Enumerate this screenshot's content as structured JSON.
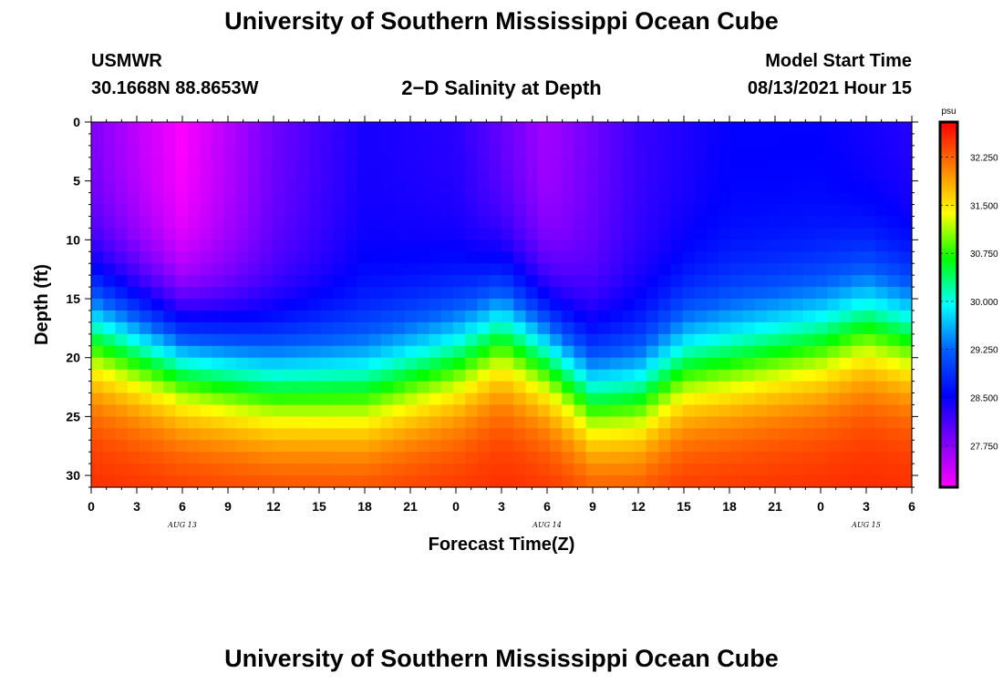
{
  "header": {
    "title_top": "University of Southern Mississippi Ocean Cube",
    "title_bottom": "University of Southern Mississippi Ocean Cube",
    "station_id": "USMWR",
    "station_coords": "30.1668N  88.8653W",
    "plot_title": "2−D Salinity at Depth",
    "model_start_label": "Model Start Time",
    "model_start_value": "08/13/2021 Hour 15"
  },
  "chart_data": {
    "type": "heatmap",
    "title": "2−D Salinity at Depth",
    "xlabel": "Forecast Time(Z)",
    "ylabel": "Depth (ft)",
    "x_ticks": [
      "0",
      "3",
      "6",
      "9",
      "12",
      "15",
      "18",
      "21",
      "0",
      "3",
      "6",
      "9",
      "12",
      "15",
      "18",
      "21",
      "0",
      "3",
      "6"
    ],
    "day_labels": [
      {
        "text": "AUG 13",
        "tick_index": 2
      },
      {
        "text": "AUG 14",
        "tick_index": 10
      },
      {
        "text": "AUG 15",
        "tick_index": 17
      }
    ],
    "y_ticks": [
      0,
      5,
      10,
      15,
      20,
      25,
      30
    ],
    "ylim": [
      0,
      31
    ],
    "xlim_hours": [
      0,
      54
    ],
    "colorbar": {
      "unit": "psu",
      "ticks": [
        "32.250",
        "31.500",
        "30.750",
        "30.000",
        "29.250",
        "28.500",
        "27.750"
      ],
      "range": [
        27.1,
        32.8
      ],
      "colors": [
        "#ff00ff",
        "#8000ff",
        "#0000ff",
        "#0060ff",
        "#00ffff",
        "#00ff00",
        "#ffff00",
        "#ff8000",
        "#ff0000"
      ]
    },
    "field_description": "Low-salinity (~27.1-28.3 psu) fresh layer near surface, strong halocline 12-22 ft, saline (~32.6 psu) bottom water; halocline rises near hour 24-30 and 48-54, deepens near hour 12-18 and 34-38.",
    "halocline_depth_ft": [
      {
        "hour": 0,
        "depth": 17.5
      },
      {
        "hour": 6,
        "depth": 20
      },
      {
        "hour": 12,
        "depth": 22
      },
      {
        "hour": 18,
        "depth": 22.5
      },
      {
        "hour": 24,
        "depth": 20
      },
      {
        "hour": 27,
        "depth": 17.5
      },
      {
        "hour": 30,
        "depth": 19.5
      },
      {
        "hour": 33,
        "depth": 23
      },
      {
        "hour": 36,
        "depth": 23
      },
      {
        "hour": 39,
        "depth": 20.5
      },
      {
        "hour": 42,
        "depth": 20
      },
      {
        "hour": 48,
        "depth": 18.5
      },
      {
        "hour": 51,
        "depth": 17
      },
      {
        "hour": 54,
        "depth": 18
      }
    ],
    "surface_salinity_psu": [
      {
        "hour": 0,
        "value": 27.8
      },
      {
        "hour": 6,
        "value": 27.1
      },
      {
        "hour": 12,
        "value": 27.9
      },
      {
        "hour": 18,
        "value": 28.4
      },
      {
        "hour": 24,
        "value": 28.3
      },
      {
        "hour": 30,
        "value": 27.6
      },
      {
        "hour": 36,
        "value": 28.2
      },
      {
        "hour": 42,
        "value": 28.5
      },
      {
        "hour": 48,
        "value": 28.5
      },
      {
        "hour": 54,
        "value": 28.3
      }
    ]
  }
}
